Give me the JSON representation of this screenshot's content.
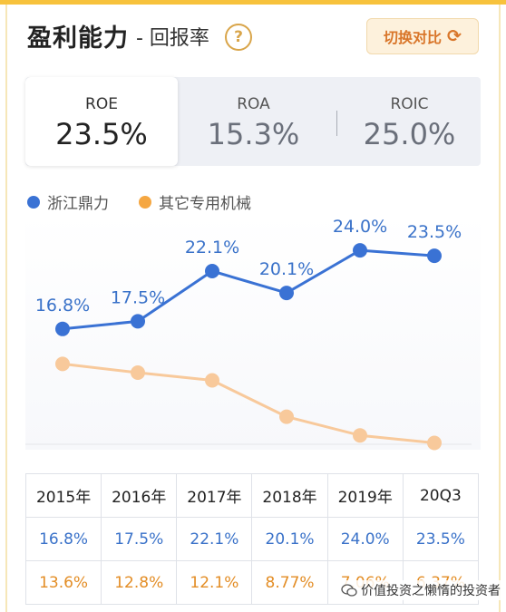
{
  "header": {
    "title": "盈利能力",
    "subtitle": "- 回报率",
    "help_icon": "question-icon",
    "help_label": "?",
    "compare_label": "切换对比",
    "compare_icon": "refresh-icon"
  },
  "metrics": [
    {
      "label": "ROE",
      "value": "23.5%",
      "active": true
    },
    {
      "label": "ROA",
      "value": "15.3%",
      "active": false
    },
    {
      "label": "ROIC",
      "value": "25.0%",
      "active": false
    }
  ],
  "legend": {
    "company": "浙江鼎力",
    "peer": "其它专用机械"
  },
  "colors": {
    "company": "#3a72d4",
    "peer": "#f8c99b",
    "accent": "#f7c23c"
  },
  "chart_data": {
    "type": "line",
    "categories": [
      "2015年",
      "2016年",
      "2017年",
      "2018年",
      "2019年",
      "20Q3"
    ],
    "series": [
      {
        "name": "浙江鼎力",
        "values": [
          16.8,
          17.5,
          22.1,
          20.1,
          24.0,
          23.5
        ],
        "labels": [
          "16.8%",
          "17.5%",
          "22.1%",
          "20.1%",
          "24.0%",
          "23.5%"
        ]
      },
      {
        "name": "其它专用机械",
        "values": [
          13.6,
          12.8,
          12.1,
          8.77,
          7.06,
          6.37
        ]
      }
    ],
    "ylim": [
      5,
      26
    ],
    "grid": false,
    "legend_position": "top-left"
  },
  "table": {
    "headers": [
      "2015年",
      "2016年",
      "2017年",
      "2018年",
      "2019年",
      "20Q3"
    ],
    "company": [
      "16.8%",
      "17.5%",
      "22.1%",
      "20.1%",
      "24.0%",
      "23.5%"
    ],
    "peer": [
      "13.6%",
      "12.8%",
      "12.1%",
      "8.77%",
      "7.06%",
      "6.37%"
    ]
  },
  "watermark": {
    "icon": "wechat-icon",
    "text": "价值投资之懒惰的投资者"
  }
}
